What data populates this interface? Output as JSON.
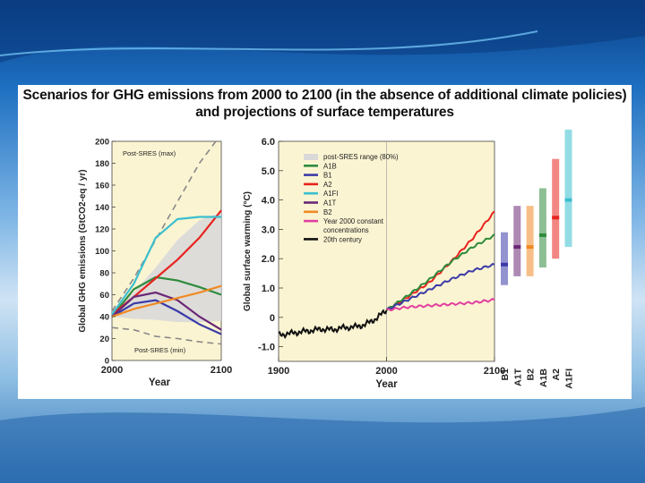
{
  "slide": {
    "title_line1": "Scenarios for GHG emissions from 2000 to 2100 (in the absence of additional climate policies)",
    "title_line2": "and projections of surface temperatures"
  },
  "colors": {
    "A1B": "#2e8b3c",
    "B1": "#3b3aa8",
    "A2": "#e8231e",
    "A1FI": "#3bbfcf",
    "A1T": "#6a2877",
    "B2": "#f08a24",
    "const": "#e23fa0",
    "c20": "#111111",
    "range": "#d9d9d9",
    "plotbg": "#fbf4d2"
  },
  "chart_data": [
    {
      "type": "line",
      "title": "",
      "xlabel": "Year",
      "ylabel": "Global GHG emissions (GtCO2-eq / yr)",
      "xlim": [
        2000,
        2100
      ],
      "ylim": [
        0,
        200
      ],
      "xticks": [
        "2000",
        "2100"
      ],
      "yticks": [
        "0",
        "20",
        "40",
        "60",
        "80",
        "100",
        "120",
        "140",
        "160",
        "180",
        "200"
      ],
      "annotations": {
        "max": "Post-SRES (max)",
        "min": "Post-SRES (min)"
      },
      "range_upper": {
        "x": [
          2000,
          2020,
          2040,
          2060,
          2080,
          2100
        ],
        "y": [
          45,
          62,
          85,
          110,
          128,
          135
        ]
      },
      "range_lower": {
        "x": [
          2000,
          2020,
          2040,
          2060,
          2080,
          2100
        ],
        "y": [
          40,
          38,
          37,
          35,
          35,
          36
        ]
      },
      "max_line": {
        "x": [
          2000,
          2020,
          2040,
          2060,
          2080,
          2095
        ],
        "y": [
          45,
          75,
          110,
          145,
          180,
          200
        ]
      },
      "min_line": {
        "x": [
          2000,
          2020,
          2040,
          2060,
          2080,
          2100
        ],
        "y": [
          30,
          28,
          22,
          20,
          17,
          15
        ]
      },
      "series": [
        {
          "name": "A1B",
          "x": [
            2000,
            2020,
            2040,
            2060,
            2080,
            2100
          ],
          "y": [
            40,
            65,
            76,
            73,
            67,
            60
          ]
        },
        {
          "name": "B1",
          "x": [
            2000,
            2020,
            2040,
            2060,
            2080,
            2100
          ],
          "y": [
            40,
            52,
            55,
            45,
            33,
            24
          ]
        },
        {
          "name": "A2",
          "x": [
            2000,
            2020,
            2040,
            2060,
            2080,
            2100
          ],
          "y": [
            42,
            58,
            75,
            92,
            112,
            137
          ]
        },
        {
          "name": "A1FI",
          "x": [
            2000,
            2020,
            2040,
            2060,
            2080,
            2100
          ],
          "y": [
            42,
            70,
            112,
            129,
            131,
            131
          ]
        },
        {
          "name": "A1T",
          "x": [
            2000,
            2020,
            2040,
            2060,
            2080,
            2100
          ],
          "y": [
            40,
            58,
            62,
            55,
            40,
            28
          ]
        },
        {
          "name": "B2",
          "x": [
            2000,
            2020,
            2040,
            2060,
            2080,
            2100
          ],
          "y": [
            40,
            47,
            52,
            57,
            62,
            68
          ]
        }
      ]
    },
    {
      "type": "line",
      "title": "",
      "xlabel": "Year",
      "ylabel": "Global surface warming (°C)",
      "xlim": [
        1900,
        2100
      ],
      "ylim": [
        -1.5,
        6.0
      ],
      "xticks": [
        "1900",
        "2000",
        "2100"
      ],
      "yticks": [
        "-1.0",
        "0",
        "1.0",
        "2.0",
        "3.0",
        "4.0",
        "5.0",
        "6.0"
      ],
      "legend": [
        "post-SRES range (80%)",
        "A1B",
        "B1",
        "A2",
        "A1FI",
        "A1T",
        "B2",
        "Year 2000 constant",
        "concentrations",
        "20th century"
      ],
      "series": [
        {
          "name": "20th century",
          "x": [
            1900,
            1910,
            1920,
            1930,
            1940,
            1950,
            1960,
            1970,
            1980,
            1990,
            2000
          ],
          "y": [
            -0.6,
            -0.55,
            -0.5,
            -0.45,
            -0.4,
            -0.42,
            -0.35,
            -0.33,
            -0.25,
            -0.05,
            0.25
          ]
        },
        {
          "name": "A2",
          "x": [
            2000,
            2020,
            2040,
            2060,
            2080,
            2100
          ],
          "y": [
            0.25,
            0.7,
            1.2,
            1.9,
            2.7,
            3.6
          ]
        },
        {
          "name": "A1B",
          "x": [
            2000,
            2020,
            2040,
            2060,
            2080,
            2100
          ],
          "y": [
            0.25,
            0.75,
            1.3,
            1.9,
            2.4,
            2.8
          ]
        },
        {
          "name": "B1",
          "x": [
            2000,
            2020,
            2040,
            2060,
            2080,
            2100
          ],
          "y": [
            0.25,
            0.6,
            0.95,
            1.3,
            1.6,
            1.8
          ]
        },
        {
          "name": "Year 2000 constant concentrations",
          "x": [
            2000,
            2020,
            2040,
            2060,
            2080,
            2100
          ],
          "y": [
            0.25,
            0.35,
            0.4,
            0.45,
            0.5,
            0.6
          ]
        }
      ]
    },
    {
      "type": "range-bars",
      "unit": "°C",
      "bars": [
        {
          "name": "B1",
          "low": 1.1,
          "best": 1.8,
          "high": 2.9
        },
        {
          "name": "A1T",
          "low": 1.4,
          "best": 2.4,
          "high": 3.8
        },
        {
          "name": "B2",
          "low": 1.4,
          "best": 2.4,
          "high": 3.8
        },
        {
          "name": "A1B",
          "low": 1.7,
          "best": 2.8,
          "high": 4.4
        },
        {
          "name": "A2",
          "low": 2.0,
          "best": 3.4,
          "high": 5.4
        },
        {
          "name": "A1FI",
          "low": 2.4,
          "best": 4.0,
          "high": 6.4
        }
      ]
    }
  ]
}
